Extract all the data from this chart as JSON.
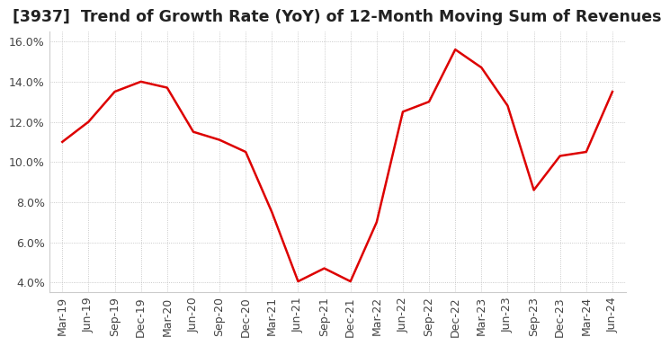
{
  "title": "[3937]  Trend of Growth Rate (YoY) of 12-Month Moving Sum of Revenues",
  "x_labels": [
    "Mar-19",
    "Jun-19",
    "Sep-19",
    "Dec-19",
    "Mar-20",
    "Jun-20",
    "Sep-20",
    "Dec-20",
    "Mar-21",
    "Jun-21",
    "Sep-21",
    "Dec-21",
    "Mar-22",
    "Jun-22",
    "Sep-22",
    "Dec-22",
    "Mar-23",
    "Jun-23",
    "Sep-23",
    "Dec-23",
    "Mar-24",
    "Jun-24"
  ],
  "y_values": [
    11.0,
    12.0,
    13.5,
    14.0,
    13.7,
    11.5,
    11.1,
    10.5,
    7.5,
    4.05,
    4.7,
    4.05,
    7.0,
    12.5,
    13.0,
    15.6,
    14.7,
    12.8,
    8.6,
    10.3,
    10.5,
    13.5
  ],
  "ylim": [
    3.5,
    16.5
  ],
  "yticks": [
    4.0,
    6.0,
    8.0,
    10.0,
    12.0,
    14.0,
    16.0
  ],
  "line_color": "#dd0000",
  "background_color": "#ffffff",
  "grid_color": "#bbbbbb",
  "title_fontsize": 12.5,
  "tick_fontsize": 9,
  "title_color": "#222222"
}
